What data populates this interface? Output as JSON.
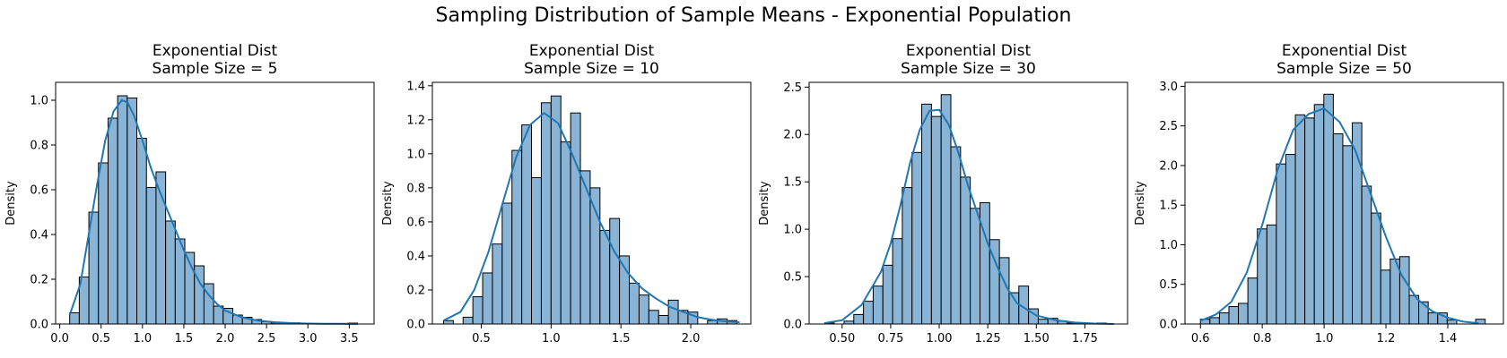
{
  "figure": {
    "suptitle": "Sampling Distribution of Sample Means - Exponential Population",
    "bar_fill": "#8ab4d6",
    "bar_edge": "#000000",
    "kde_color": "#1f77b4"
  },
  "chart_data": [
    {
      "type": "histogram",
      "title_line1": "Exponential Dist",
      "title_line2": "Sample Size = 5",
      "ylabel": "Density",
      "xlim": [
        -0.05,
        3.8
      ],
      "ylim": [
        0,
        1.08
      ],
      "xticks": [
        0.0,
        0.5,
        1.0,
        1.5,
        2.0,
        2.5,
        3.0,
        3.5
      ],
      "xtick_labels": [
        "0.0",
        "0.5",
        "1.0",
        "1.5",
        "2.0",
        "2.5",
        "3.0",
        "3.5"
      ],
      "yticks": [
        0.0,
        0.2,
        0.4,
        0.6,
        0.8,
        1.0
      ],
      "ytick_labels": [
        "0.0",
        "0.2",
        "0.4",
        "0.6",
        "0.8",
        "1.0"
      ],
      "bin_start": 0.12,
      "bin_width": 0.116,
      "bin_heights": [
        0.05,
        0.21,
        0.5,
        0.72,
        0.92,
        1.02,
        1.01,
        0.83,
        0.61,
        0.68,
        0.46,
        0.38,
        0.32,
        0.26,
        0.18,
        0.08,
        0.07,
        0.04,
        0.03,
        0.02,
        0.01,
        0.005,
        0.0,
        0.005,
        0.003,
        0.0,
        0.0,
        0.0,
        0.0,
        0.004
      ],
      "kde_x": [
        0.12,
        0.25,
        0.35,
        0.45,
        0.55,
        0.65,
        0.75,
        0.82,
        0.9,
        1.0,
        1.1,
        1.2,
        1.3,
        1.4,
        1.5,
        1.6,
        1.7,
        1.8,
        1.9,
        2.0,
        2.2,
        2.4,
        2.6,
        2.8,
        3.0,
        3.2,
        3.4,
        3.6
      ],
      "kde_y": [
        0.04,
        0.18,
        0.4,
        0.62,
        0.82,
        0.95,
        1.0,
        0.99,
        0.93,
        0.82,
        0.7,
        0.6,
        0.51,
        0.42,
        0.33,
        0.25,
        0.18,
        0.13,
        0.09,
        0.06,
        0.03,
        0.015,
        0.008,
        0.004,
        0.002,
        0.001,
        0.001,
        0.0
      ]
    },
    {
      "type": "histogram",
      "title_line1": "Exponential Dist",
      "title_line2": "Sample Size = 10",
      "ylabel": "Density",
      "xlim": [
        0.15,
        2.43
      ],
      "ylim": [
        0,
        1.42
      ],
      "xticks": [
        0.5,
        1.0,
        1.5,
        2.0
      ],
      "xtick_labels": [
        "0.5",
        "1.0",
        "1.5",
        "2.0"
      ],
      "yticks": [
        0.0,
        0.2,
        0.4,
        0.6,
        0.8,
        1.0,
        1.2,
        1.4
      ],
      "ytick_labels": [
        "0.0",
        "0.2",
        "0.4",
        "0.6",
        "0.8",
        "1.0",
        "1.2",
        "1.4"
      ],
      "bin_start": 0.23,
      "bin_width": 0.07,
      "bin_heights": [
        0.02,
        0.0,
        0.04,
        0.16,
        0.3,
        0.47,
        0.71,
        1.02,
        1.17,
        0.86,
        1.3,
        1.34,
        1.07,
        1.24,
        0.9,
        0.8,
        0.55,
        0.62,
        0.4,
        0.24,
        0.17,
        0.08,
        0.05,
        0.14,
        0.08,
        0.07,
        0.0,
        0.02,
        0.03,
        0.02
      ],
      "kde_x": [
        0.23,
        0.35,
        0.45,
        0.55,
        0.65,
        0.75,
        0.85,
        0.95,
        1.05,
        1.15,
        1.25,
        1.35,
        1.45,
        1.55,
        1.65,
        1.75,
        1.85,
        1.95,
        2.05,
        2.15,
        2.25,
        2.35
      ],
      "kde_y": [
        0.02,
        0.07,
        0.2,
        0.42,
        0.7,
        0.98,
        1.17,
        1.24,
        1.18,
        1.0,
        0.8,
        0.6,
        0.43,
        0.3,
        0.21,
        0.15,
        0.1,
        0.07,
        0.04,
        0.025,
        0.015,
        0.01
      ]
    },
    {
      "type": "histogram",
      "title_line1": "Exponential Dist",
      "title_line2": "Sample Size = 30",
      "ylabel": "Density",
      "xlim": [
        0.33,
        1.97
      ],
      "ylim": [
        0,
        2.55
      ],
      "xticks": [
        0.5,
        0.75,
        1.0,
        1.25,
        1.5,
        1.75
      ],
      "xtick_labels": [
        "0.50",
        "0.75",
        "1.00",
        "1.25",
        "1.50",
        "1.75"
      ],
      "yticks": [
        0.0,
        0.5,
        1.0,
        1.5,
        2.0,
        2.5
      ],
      "ytick_labels": [
        "0.0",
        "0.5",
        "1.0",
        "1.5",
        "2.0",
        "2.5"
      ],
      "bin_start": 0.41,
      "bin_width": 0.05,
      "bin_heights": [
        0.01,
        0.0,
        0.03,
        0.1,
        0.24,
        0.4,
        0.62,
        0.9,
        1.44,
        1.81,
        2.32,
        2.19,
        2.42,
        1.87,
        1.55,
        1.22,
        1.28,
        0.89,
        0.7,
        0.33,
        0.4,
        0.16,
        0.05,
        0.06,
        0.03,
        0.01,
        0.0,
        0.0,
        0.01,
        0.0
      ],
      "kde_x": [
        0.41,
        0.5,
        0.6,
        0.7,
        0.75,
        0.8,
        0.85,
        0.9,
        0.95,
        1.0,
        1.05,
        1.1,
        1.15,
        1.2,
        1.25,
        1.3,
        1.35,
        1.4,
        1.5,
        1.6,
        1.7,
        1.8,
        1.9
      ],
      "kde_y": [
        0.01,
        0.04,
        0.2,
        0.55,
        0.85,
        1.25,
        1.7,
        2.05,
        2.25,
        2.26,
        2.1,
        1.8,
        1.45,
        1.15,
        0.85,
        0.6,
        0.38,
        0.22,
        0.09,
        0.04,
        0.015,
        0.005,
        0.0
      ]
    },
    {
      "type": "histogram",
      "title_line1": "Exponential Dist",
      "title_line2": "Sample Size = 50",
      "ylabel": "Density",
      "xlim": [
        0.55,
        1.58
      ],
      "ylim": [
        0,
        3.05
      ],
      "xticks": [
        0.6,
        0.8,
        1.0,
        1.2,
        1.4
      ],
      "xtick_labels": [
        "0.6",
        "0.8",
        "1.0",
        "1.2",
        "1.4"
      ],
      "yticks": [
        0.0,
        0.5,
        1.0,
        1.5,
        2.0,
        2.5,
        3.0
      ],
      "ytick_labels": [
        "0.0",
        "0.5",
        "1.0",
        "1.5",
        "2.0",
        "2.5",
        "3.0"
      ],
      "bin_start": 0.6,
      "bin_width": 0.0307,
      "bin_heights": [
        0.06,
        0.08,
        0.14,
        0.22,
        0.26,
        0.58,
        1.2,
        1.25,
        2.02,
        2.14,
        2.64,
        2.6,
        2.77,
        2.9,
        2.4,
        2.25,
        2.54,
        1.74,
        1.4,
        0.68,
        0.82,
        0.85,
        0.36,
        0.28,
        0.14,
        0.14,
        0.05,
        0.0,
        0.0,
        0.06
      ],
      "kde_x": [
        0.6,
        0.65,
        0.7,
        0.75,
        0.8,
        0.85,
        0.9,
        0.95,
        1.0,
        1.05,
        1.1,
        1.15,
        1.2,
        1.25,
        1.3,
        1.35,
        1.4,
        1.45,
        1.5
      ],
      "kde_y": [
        0.04,
        0.12,
        0.28,
        0.65,
        1.25,
        1.95,
        2.45,
        2.65,
        2.72,
        2.55,
        2.2,
        1.65,
        1.1,
        0.62,
        0.32,
        0.16,
        0.08,
        0.03,
        0.01
      ]
    }
  ]
}
